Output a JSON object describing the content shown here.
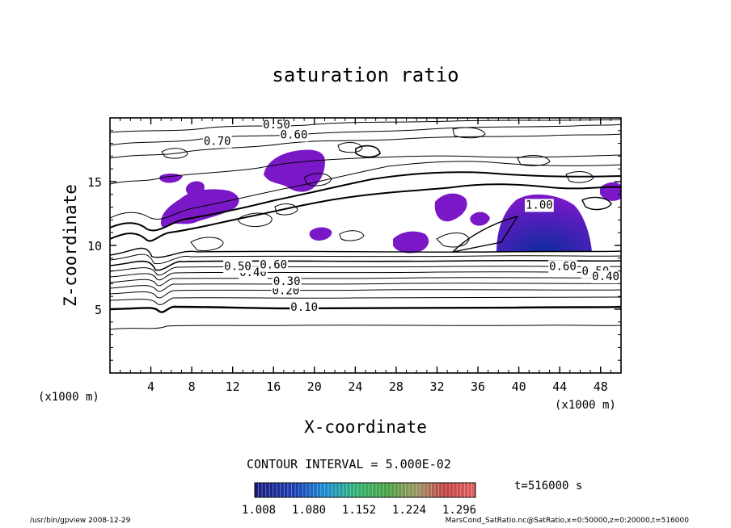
{
  "chart_data": {
    "type": "contour",
    "title": "saturation ratio",
    "xlabel": "X-coordinate",
    "ylabel": "Z-coordinate",
    "x_unit": "(x1000 m)",
    "z_unit": "(x1000 m)",
    "xlim": [
      0,
      50
    ],
    "ylim": [
      0,
      20
    ],
    "x_ticks": [
      4,
      8,
      12,
      16,
      20,
      24,
      28,
      32,
      36,
      40,
      44,
      48
    ],
    "y_ticks": [
      5,
      10,
      15
    ],
    "contour_interval_label": "CONTOUR INTERVAL = 5.000E-02",
    "contour_labels": [
      "0.10",
      "0.20",
      "0.30",
      "0.40",
      "0.50",
      "0.60",
      "0.70",
      "1.00"
    ],
    "contour_label_positions": [
      {
        "text": "0.10",
        "x": 19,
        "z": 5.2
      },
      {
        "text": "0.20",
        "x": 17.2,
        "z": 6.5
      },
      {
        "text": "0.30",
        "x": 17.3,
        "z": 7.2
      },
      {
        "text": "0.40",
        "x": 14,
        "z": 7.9
      },
      {
        "text": "0.50",
        "x": 12.5,
        "z": 8.4
      },
      {
        "text": "0.60",
        "x": 16,
        "z": 8.5
      },
      {
        "text": "0.50",
        "x": 16.3,
        "z": 19.5
      },
      {
        "text": "0.60",
        "x": 18,
        "z": 18.7
      },
      {
        "text": "0.70",
        "x": 10.5,
        "z": 18.2
      },
      {
        "text": "0.60",
        "x": 44.3,
        "z": 8.4
      },
      {
        "text": "0.50",
        "x": 47.5,
        "z": 8.0
      },
      {
        "text": "0.40",
        "x": 48.5,
        "z": 7.6
      },
      {
        "text": "1.00",
        "x": 42,
        "z": 13.2
      }
    ],
    "shaded_min": 1.0,
    "colorbar_ticks": [
      "1.008",
      "1.080",
      "1.152",
      "1.224",
      "1.296"
    ],
    "time_label": "t=516000 s",
    "grid": false
  },
  "footer": {
    "left": "/usr/bin/gpview  2008-12-29",
    "right": "MarsCond_SatRatio.nc@SatRatio,x=0:50000,z=0:20000,t=516000"
  },
  "colors": {
    "shade_light": "#7a18c8",
    "shade_dark": "#1430a8",
    "line": "#000000",
    "background": "#ffffff"
  }
}
